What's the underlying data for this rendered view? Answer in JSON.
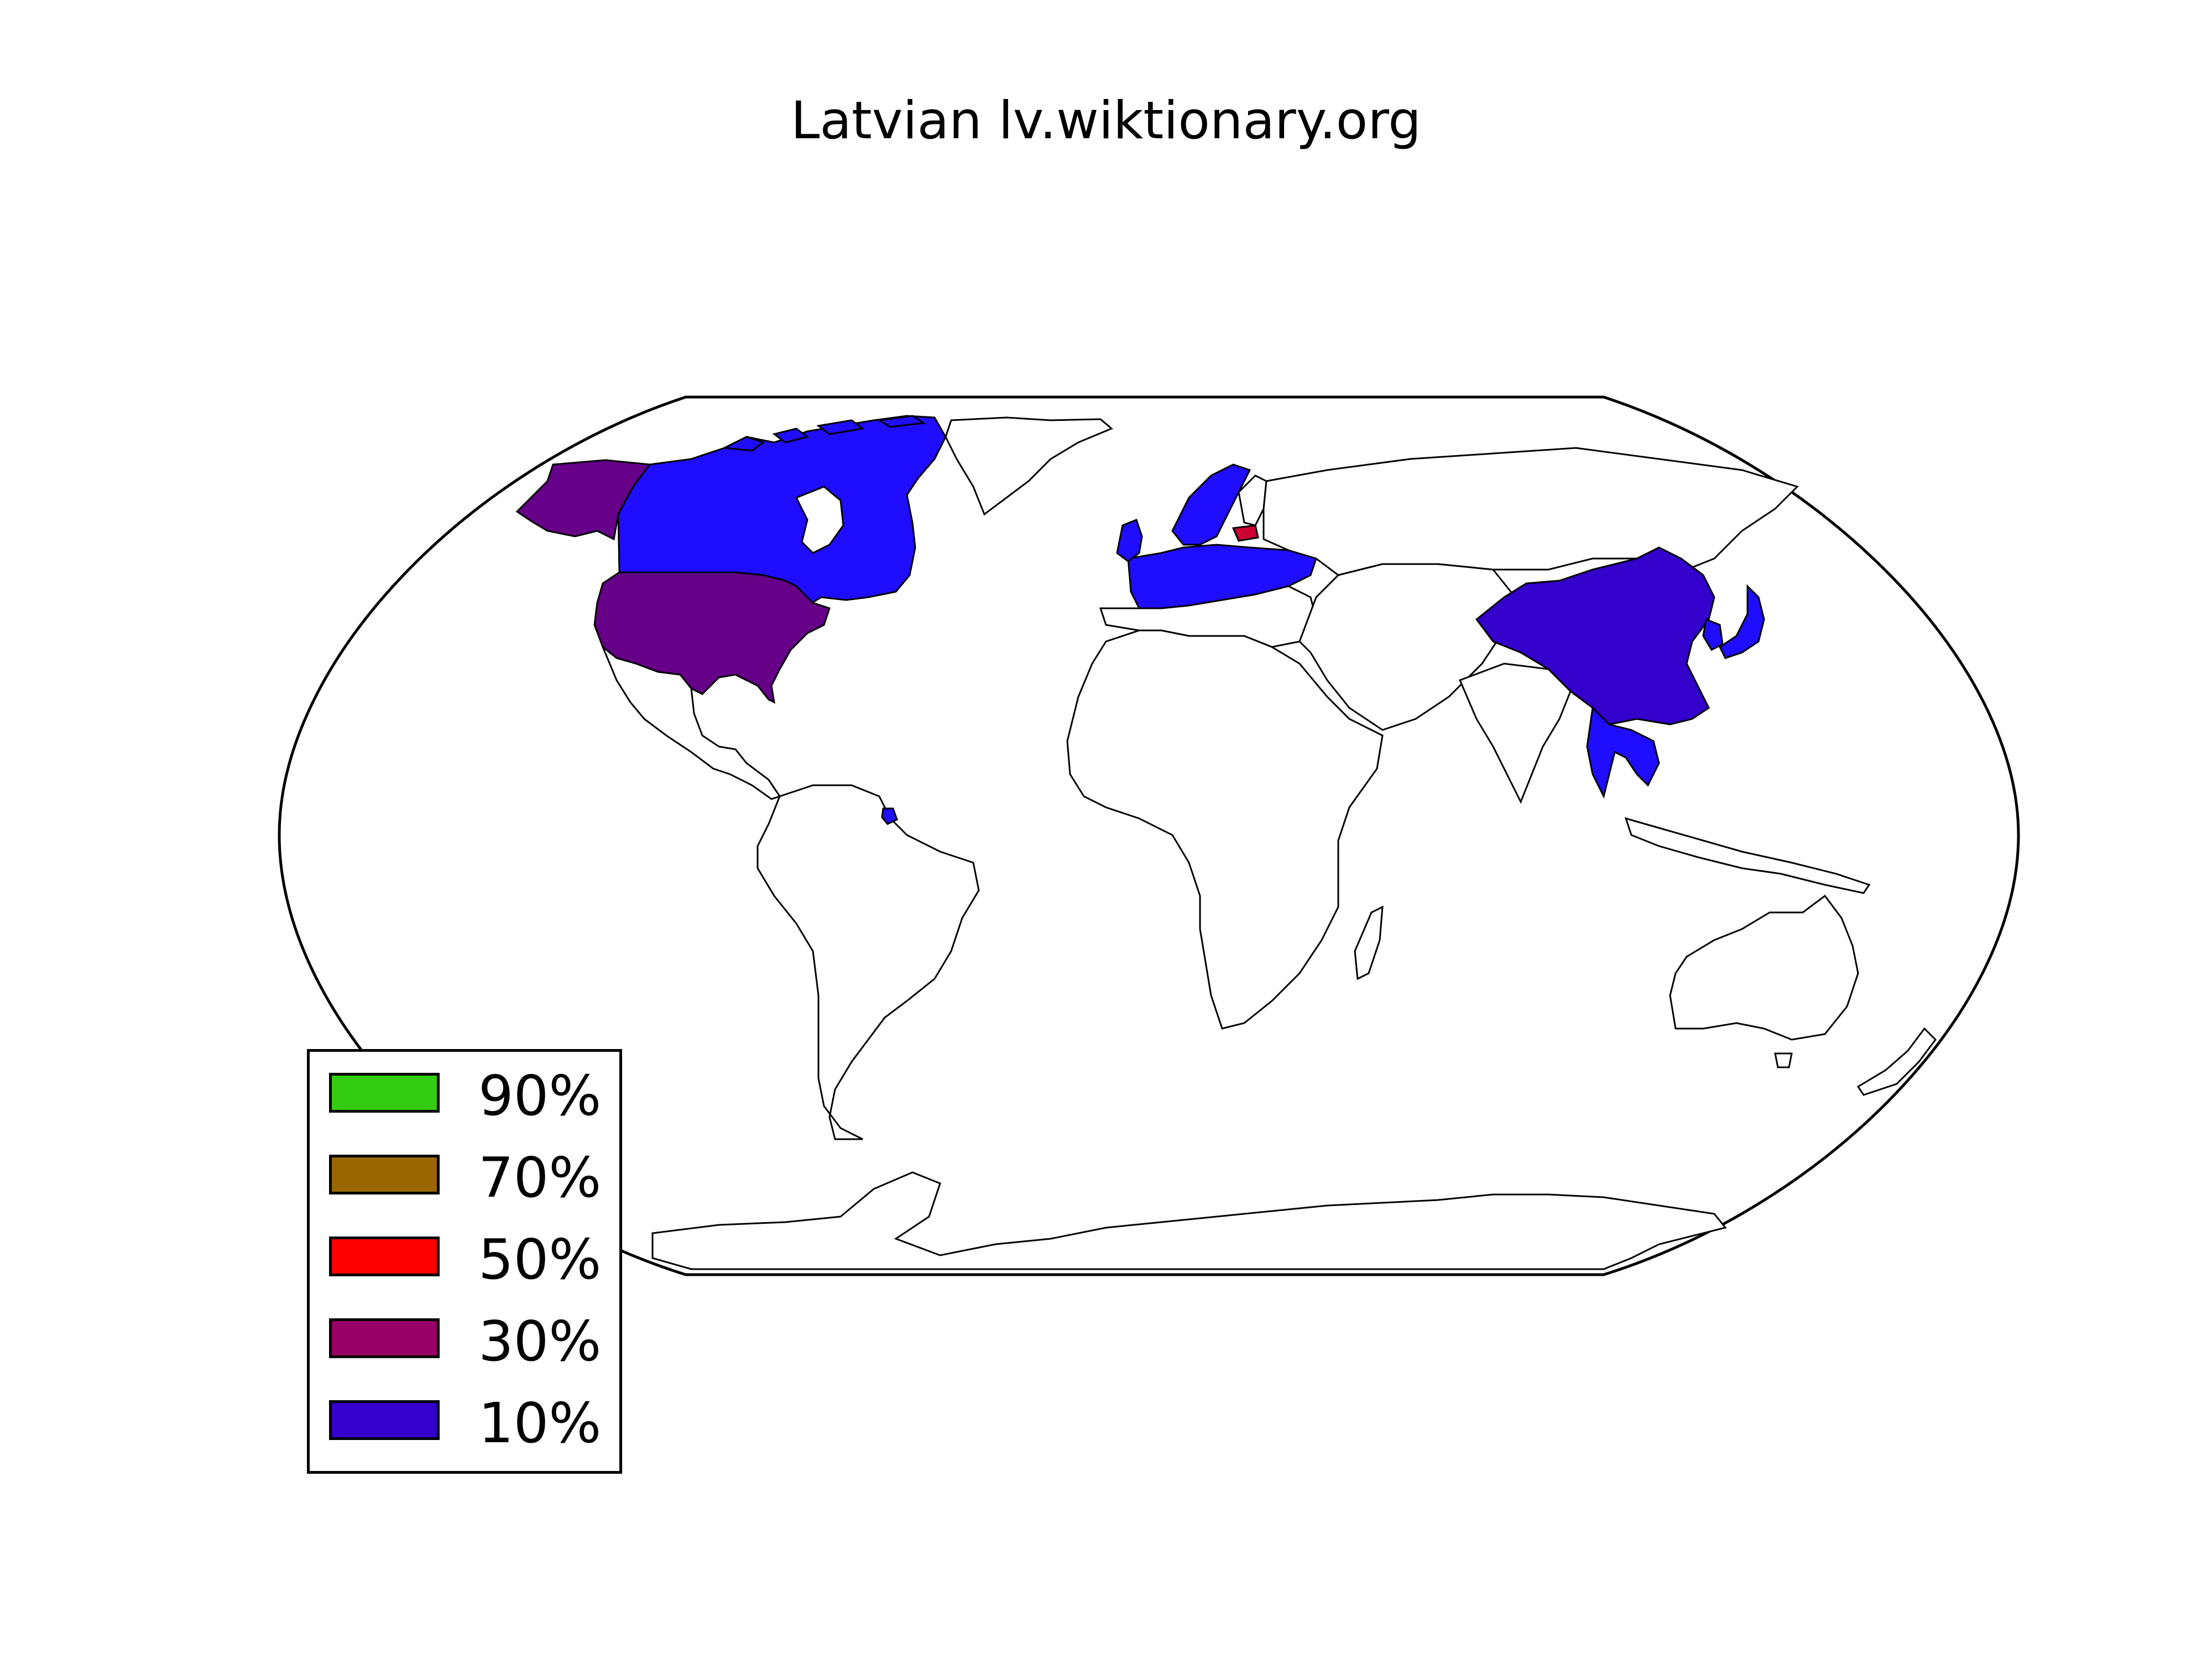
{
  "map": {
    "title": "Latvian lv.wiktionary.org",
    "colors": {
      "ocean": "#ffffff",
      "land_default": "#ffffff",
      "border": "#000000",
      "light_blue": "#1f0dff"
    },
    "legend": [
      {
        "label": "90%",
        "color": "#33cc11"
      },
      {
        "label": "70%",
        "color": "#996600"
      },
      {
        "label": "50%",
        "color": "#ff0000"
      },
      {
        "label": "30%",
        "color": "#990066"
      },
      {
        "label": "10%",
        "color": "#3300cc"
      }
    ],
    "highlighted_regions": [
      {
        "region": "United States",
        "color": "#660088"
      },
      {
        "region": "Alaska",
        "color": "#660088"
      },
      {
        "region": "Canada",
        "color": "#1f0dff"
      },
      {
        "region": "Latvia",
        "color": "#cc0033"
      },
      {
        "region": "China",
        "color": "#3300cc"
      },
      {
        "region": "Japan",
        "color": "#1f0dff"
      },
      {
        "region": "South Korea",
        "color": "#1f0dff"
      },
      {
        "region": "Thailand",
        "color": "#1f0dff"
      },
      {
        "region": "Vietnam",
        "color": "#1f0dff"
      },
      {
        "region": "Scandinavia",
        "color": "#1f0dff"
      },
      {
        "region": "Western Europe",
        "color": "#1f0dff"
      },
      {
        "region": "Ukraine",
        "color": "#1f0dff"
      },
      {
        "region": "French Guiana",
        "color": "#1f0dff"
      }
    ]
  }
}
